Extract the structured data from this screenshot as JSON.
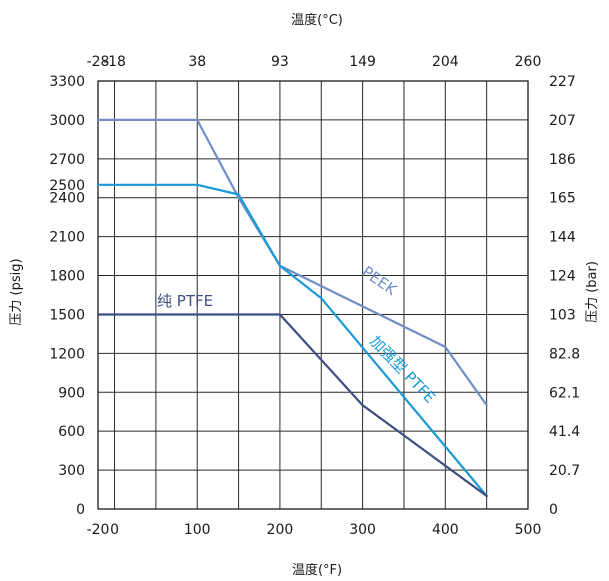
{
  "chart_data": {
    "type": "line",
    "title": "",
    "xlabel": "温度(°F)",
    "x2label": "温度(°C)",
    "ylabel": "压力 (psig)",
    "y2label": "压力 (bar)",
    "xlim": [
      -20,
      500
    ],
    "ylim": [
      0,
      3300
    ],
    "grid": true,
    "x_ticks": [
      {
        "value": -20,
        "label": "-20"
      },
      {
        "value": 0,
        "label": "0"
      },
      {
        "value": 100,
        "label": "100"
      },
      {
        "value": 200,
        "label": "200"
      },
      {
        "value": 300,
        "label": "300"
      },
      {
        "value": 400,
        "label": "400"
      },
      {
        "value": 500,
        "label": "500"
      }
    ],
    "x2_ticks": [
      {
        "value": -20,
        "label": "-28"
      },
      {
        "value": 0,
        "label": "-18"
      },
      {
        "value": 100,
        "label": "38"
      },
      {
        "value": 200,
        "label": "93"
      },
      {
        "value": 300,
        "label": "149"
      },
      {
        "value": 400,
        "label": "204"
      },
      {
        "value": 500,
        "label": "260"
      }
    ],
    "y_ticks": [
      {
        "value": 0,
        "label": "0"
      },
      {
        "value": 300,
        "label": "300"
      },
      {
        "value": 600,
        "label": "600"
      },
      {
        "value": 900,
        "label": "900"
      },
      {
        "value": 1200,
        "label": "1200"
      },
      {
        "value": 1500,
        "label": "1500"
      },
      {
        "value": 1800,
        "label": "1800"
      },
      {
        "value": 2100,
        "label": "2100"
      },
      {
        "value": 2400,
        "label": "2400"
      },
      {
        "value": 2500,
        "label": "2500"
      },
      {
        "value": 2700,
        "label": "2700"
      },
      {
        "value": 3000,
        "label": "3000"
      },
      {
        "value": 3300,
        "label": "3300"
      }
    ],
    "y2_ticks": [
      {
        "value": 0,
        "label": "0"
      },
      {
        "value": 300,
        "label": "20.7"
      },
      {
        "value": 600,
        "label": "41.4"
      },
      {
        "value": 900,
        "label": "62.1"
      },
      {
        "value": 1200,
        "label": "82.8"
      },
      {
        "value": 1500,
        "label": "103"
      },
      {
        "value": 1800,
        "label": "124"
      },
      {
        "value": 2100,
        "label": "144"
      },
      {
        "value": 2400,
        "label": "165"
      },
      {
        "value": 2700,
        "label": "186"
      },
      {
        "value": 3000,
        "label": "207"
      },
      {
        "value": 3300,
        "label": "227"
      }
    ],
    "grid_x": [
      0,
      50,
      100,
      150,
      200,
      250,
      300,
      350,
      400,
      450,
      500
    ],
    "grid_y": [
      0,
      300,
      600,
      900,
      1200,
      1500,
      1800,
      2100,
      2400,
      2700,
      3000,
      3300
    ],
    "series": [
      {
        "name": "PEEK",
        "color": "#6f8fc6",
        "x": [
          -20,
          100,
          150,
          200,
          400,
          450
        ],
        "y": [
          3000,
          3000,
          2400,
          1875,
          1250,
          800
        ]
      },
      {
        "name": "加强型 PTFE",
        "color": "#1a9ad6",
        "x": [
          -20,
          100,
          150,
          200,
          250,
          450
        ],
        "y": [
          2500,
          2500,
          2425,
          1875,
          1625,
          100
        ]
      },
      {
        "name": "纯 PTFE",
        "color": "#3e4e83",
        "x": [
          -20,
          200,
          300,
          450
        ],
        "y": [
          1500,
          1500,
          800,
          100
        ]
      }
    ]
  }
}
